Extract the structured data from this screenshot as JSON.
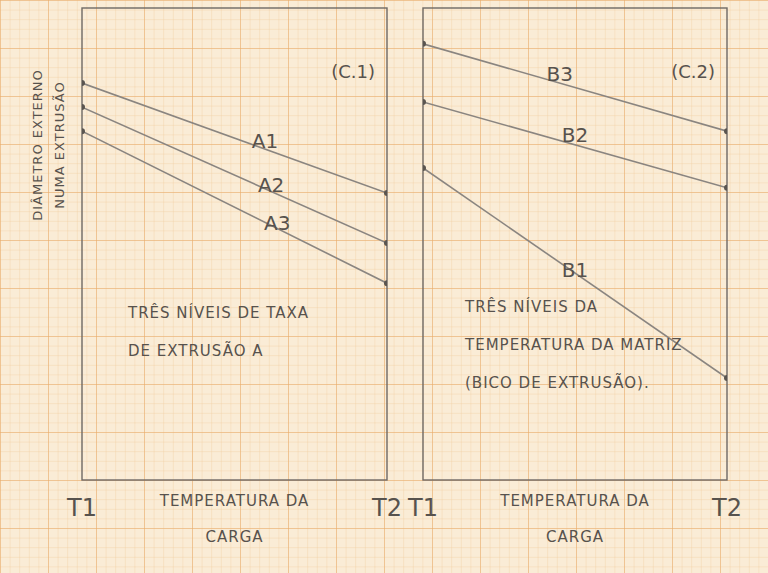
{
  "chart_data": [
    {
      "type": "line",
      "panel_label": "(C.1)",
      "y_label": "DIÂMETRO EXTERNO NUMA EXTRUSÃO",
      "x_label": "TEMPERATURA DA CARGA",
      "annotation": "TRÊS NÍVEIS DE TAXA DE EXTRUSÃO A",
      "categories": [
        "T1",
        "T2"
      ],
      "ylim": [
        0,
        100
      ],
      "yticks": [],
      "tick_labels": "x",
      "grid": false,
      "marker": "circle",
      "series": [
        {
          "name": "A1",
          "color": "#8a8580",
          "values": [
            84.1,
            60.8
          ]
        },
        {
          "name": "A2",
          "color": "#8a8580",
          "values": [
            79.0,
            50.2
          ]
        },
        {
          "name": "A3",
          "color": "#8a8580",
          "values": [
            73.9,
            41.7
          ]
        }
      ]
    },
    {
      "type": "line",
      "panel_label": "(C.2)",
      "x_label": "TEMPERATURA DA CARGA",
      "annotation": "TRÊS NÍVEIS DA TEMPERATURA DA MATRIZ (BICO DE EXTRUSÃO).",
      "categories": [
        "T1",
        "T2"
      ],
      "ylim": [
        0,
        100
      ],
      "yticks": [],
      "tick_labels": "x",
      "grid": false,
      "marker": "circle",
      "series": [
        {
          "name": "B3",
          "color": "#8a8580",
          "values": [
            92.4,
            73.9
          ]
        },
        {
          "name": "B2",
          "color": "#8a8580",
          "values": [
            80.1,
            61.9
          ]
        },
        {
          "name": "B1",
          "color": "#8a8580",
          "values": [
            66.1,
            21.6
          ]
        }
      ]
    }
  ]
}
